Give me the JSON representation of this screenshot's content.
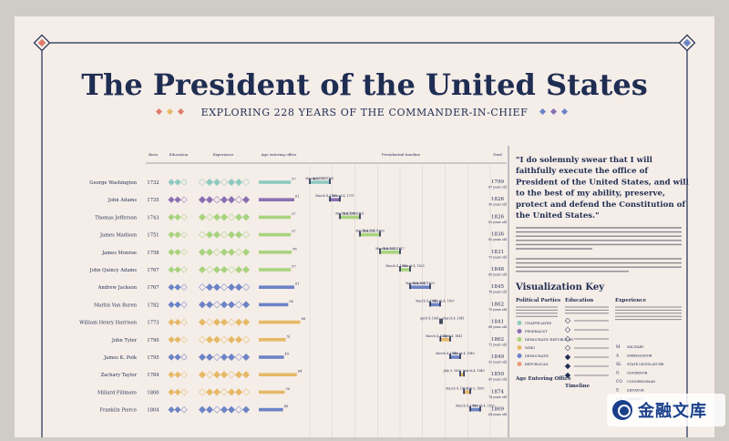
{
  "poster": {
    "title": "The President of the United States",
    "subtitle": "Exploring 228 years of the Commander-in-chief",
    "quote": "\"I do solemnly swear that I will faithfully execute the office of President of the United States, and will to the best of my ability, preserve, protect and defend the Constitution of the United States.\""
  },
  "columns": {
    "born": "Born",
    "education": "Education",
    "experience": "Experience",
    "age_entering": "Age entering office",
    "timeline": "Presidential timeline",
    "died": "Died"
  },
  "key": {
    "heading": "Visualization Key",
    "parties_heading": "Political Parties",
    "education_heading": "Education",
    "experience_heading": "Experience",
    "age_heading": "Age Entering Office",
    "timeline_heading": "Timeline",
    "parties": [
      {
        "name": "Unaffiliated",
        "color": "#8ec9c0"
      },
      {
        "name": "Federalist",
        "color": "#8a6fb0"
      },
      {
        "name": "Democratic-Republican",
        "color": "#a8d37e"
      },
      {
        "name": "Whig",
        "color": "#e6b968"
      },
      {
        "name": "Democratic",
        "color": "#6c83c6"
      },
      {
        "name": "Republican",
        "color": "#e89a7c"
      }
    ],
    "experience_codes": [
      {
        "code": "M",
        "label": "Military"
      },
      {
        "code": "A",
        "label": "Ambassador"
      },
      {
        "code": "SL",
        "label": "State legislature"
      },
      {
        "code": "G",
        "label": "Governor"
      },
      {
        "code": "CO",
        "label": "Congressman"
      },
      {
        "code": "S",
        "label": "Senator"
      },
      {
        "code": "CA",
        "label": "Cabinet"
      }
    ]
  },
  "chart_data": {
    "type": "table",
    "title": "The President of the United States",
    "timeline_range": [
      1789,
      1861
    ],
    "presidents": [
      {
        "name": "George Washington",
        "born": 1732,
        "died": 1799,
        "age_died": "67 years old",
        "party": "Unaffiliated",
        "age_entering": 57,
        "start": 1789,
        "end": 1797,
        "start_label": "April 30, 1789",
        "end_label": "March 4, 1797"
      },
      {
        "name": "John Adams",
        "born": 1735,
        "died": 1826,
        "age_died": "90 years old",
        "party": "Federalist",
        "age_entering": 61,
        "start": 1797,
        "end": 1801,
        "start_label": "March 4, 1797",
        "end_label": "March 4, 1801"
      },
      {
        "name": "Thomas Jefferson",
        "born": 1743,
        "died": 1826,
        "age_died": "83 years old",
        "party": "Democratic-Republican",
        "age_entering": 57,
        "start": 1801,
        "end": 1809,
        "start_label": "March 4, 1801",
        "end_label": "March 4, 1809"
      },
      {
        "name": "James Madison",
        "born": 1751,
        "died": 1836,
        "age_died": "85 years old",
        "party": "Democratic-Republican",
        "age_entering": 57,
        "start": 1809,
        "end": 1817,
        "start_label": "March 4, 1809",
        "end_label": "March 4, 1817"
      },
      {
        "name": "James Monroe",
        "born": 1758,
        "died": 1831,
        "age_died": "73 years old",
        "party": "Democratic-Republican",
        "age_entering": 58,
        "start": 1817,
        "end": 1825,
        "start_label": "March 4, 1817",
        "end_label": "March 4, 1825"
      },
      {
        "name": "John Quincy Adams",
        "born": 1767,
        "died": 1848,
        "age_died": "80 years old",
        "party": "Democratic-Republican",
        "age_entering": 57,
        "start": 1825,
        "end": 1829,
        "start_label": "March 4, 1825",
        "end_label": "March 4, 1829"
      },
      {
        "name": "Andrew Jackson",
        "born": 1767,
        "died": 1845,
        "age_died": "78 years old",
        "party": "Democratic",
        "age_entering": 61,
        "start": 1829,
        "end": 1837,
        "start_label": "March 4, 1829",
        "end_label": "March 4, 1837"
      },
      {
        "name": "Martin Van Buren",
        "born": 1782,
        "died": 1862,
        "age_died": "79 years old",
        "party": "Democratic",
        "age_entering": 54,
        "start": 1837,
        "end": 1841,
        "start_label": "March 4, 1837",
        "end_label": "March 4, 1841"
      },
      {
        "name": "William Henry Harrison",
        "born": 1773,
        "died": 1841,
        "age_died": "68 years old",
        "party": "Whig",
        "age_entering": 68,
        "start": 1841,
        "end": 1841.1,
        "start_label": "March 4, 1841",
        "end_label": "April 4, 1841"
      },
      {
        "name": "John Tyler",
        "born": 1790,
        "died": 1862,
        "age_died": "71 years old",
        "party": "Whig",
        "age_entering": 51,
        "start": 1841.1,
        "end": 1845,
        "start_label": "April 4, 1841",
        "end_label": "March 4, 1845"
      },
      {
        "name": "James K. Polk",
        "born": 1795,
        "died": 1849,
        "age_died": "53 years old",
        "party": "Democratic",
        "age_entering": 49,
        "start": 1845,
        "end": 1849,
        "start_label": "March 4, 1845",
        "end_label": "March 4, 1849"
      },
      {
        "name": "Zachary Taylor",
        "born": 1784,
        "died": 1850,
        "age_died": "65 years old",
        "party": "Whig",
        "age_entering": 64,
        "start": 1849,
        "end": 1850.5,
        "start_label": "March 4, 1849",
        "end_label": "July 9, 1850"
      },
      {
        "name": "Millard Fillmore",
        "born": 1800,
        "died": 1874,
        "age_died": "74 years old",
        "party": "Whig",
        "age_entering": 50,
        "start": 1850.5,
        "end": 1853,
        "start_label": "July 9, 1850",
        "end_label": "March 4, 1853"
      },
      {
        "name": "Franklin Pierce",
        "born": 1804,
        "died": 1869,
        "age_died": "64 years old",
        "party": "Democratic",
        "age_entering": 48,
        "start": 1853,
        "end": 1857,
        "start_label": "March 4, 1853",
        "end_label": "March 4, 1857"
      }
    ]
  },
  "watermark": {
    "text": "金融文库"
  }
}
